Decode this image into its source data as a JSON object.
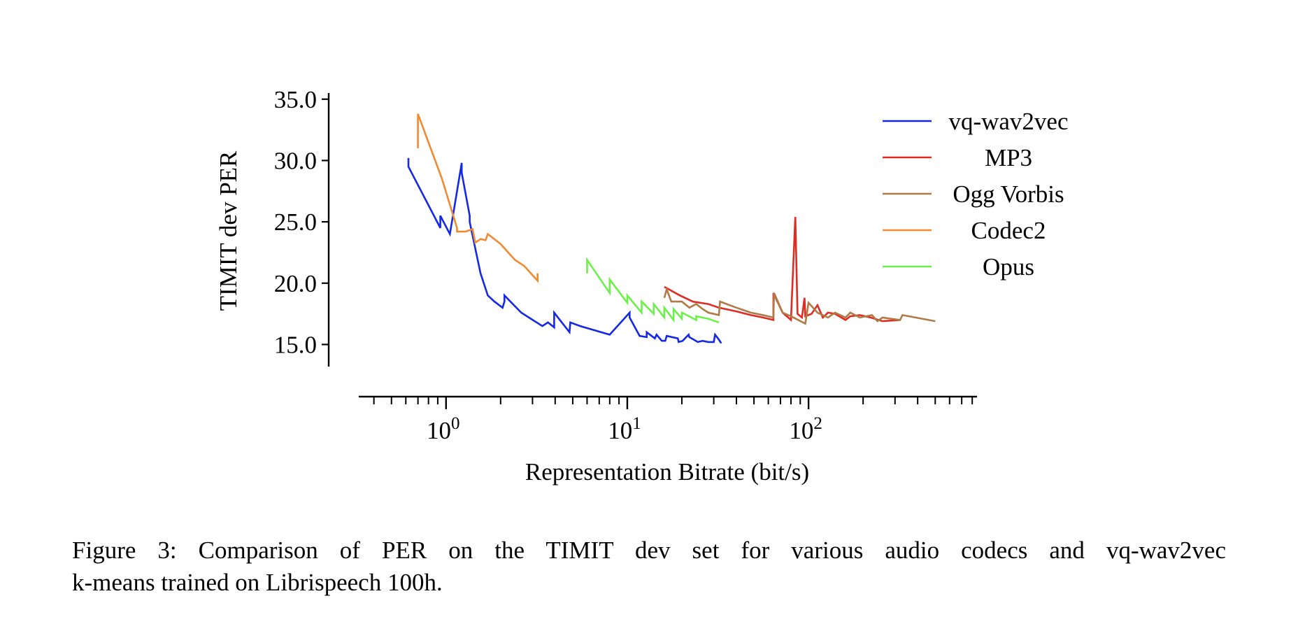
{
  "chart_data": {
    "type": "line",
    "xlabel": "Representation Bitrate (bit/s)",
    "ylabel": "TIMIT dev PER",
    "xscale": "log",
    "xlim": [
      0.33,
      850
    ],
    "ylim": [
      13.2,
      35.5
    ],
    "yticks": [
      15.0,
      20.0,
      25.0,
      30.0,
      35.0
    ],
    "ytick_labels": [
      "15.0",
      "20.0",
      "25.0",
      "30.0",
      "35.0"
    ],
    "xticks_major": [
      1,
      10,
      100
    ],
    "xtick_labels": [
      {
        "base": "10",
        "exp": "0"
      },
      {
        "base": "10",
        "exp": "1"
      },
      {
        "base": "10",
        "exp": "2"
      }
    ],
    "grid": false,
    "legend": "top-right",
    "series": [
      {
        "name": "vq-wav2vec",
        "color": "#1428e6",
        "x": [
          0.62,
          0.62,
          0.93,
          0.93,
          1.05,
          1.22,
          1.22,
          1.35,
          1.35,
          1.55,
          1.7,
          1.85,
          2.05,
          2.1,
          2.1,
          2.6,
          3.4,
          3.65,
          3.95,
          3.95,
          4.8,
          4.85,
          5.5,
          5.8,
          8.0,
          10.3,
          10.3,
          11.7,
          12.8,
          12.8,
          14.2,
          14.5,
          15.5,
          16.2,
          16.5,
          19.0,
          19.2,
          20.2,
          21.8,
          22.0,
          24.5,
          26.0,
          28.0,
          30.0,
          30.5,
          32.0,
          33.0
        ],
        "y": [
          30.2,
          29.5,
          24.5,
          25.5,
          24.0,
          29.8,
          29.0,
          25.5,
          25.0,
          20.8,
          19.0,
          18.5,
          18.0,
          18.5,
          19.0,
          17.6,
          16.5,
          16.8,
          16.4,
          17.6,
          16.0,
          16.8,
          16.5,
          16.4,
          15.8,
          17.6,
          17.2,
          15.7,
          15.6,
          16.0,
          15.5,
          15.8,
          15.3,
          15.3,
          15.7,
          15.5,
          15.2,
          15.3,
          15.8,
          15.6,
          15.2,
          15.3,
          15.2,
          15.2,
          15.8,
          15.4,
          15.1
        ]
      },
      {
        "name": "MP3",
        "color": "#e02b22",
        "x": [
          16.0,
          19.5,
          23.0,
          28.0,
          32.0,
          40.0,
          48.0,
          56.0,
          64.0,
          64.0,
          72.0,
          80.0,
          84.5,
          87.0,
          92.0,
          95.0,
          96.0,
          104.0,
          112.0,
          120.0,
          128.0,
          140.0,
          160.0,
          170.0,
          192.0,
          220.0,
          256.0,
          320.0
        ],
        "y": [
          19.7,
          19.0,
          18.5,
          18.3,
          18.0,
          17.7,
          17.4,
          17.2,
          17.0,
          19.2,
          17.6,
          17.0,
          25.4,
          17.5,
          17.2,
          18.8,
          17.3,
          17.5,
          18.2,
          17.2,
          17.6,
          17.5,
          17.0,
          17.3,
          17.4,
          17.2,
          16.9,
          17.0
        ]
      },
      {
        "name": "Ogg Vorbis",
        "color": "#b07a47",
        "x": [
          16.0,
          16.5,
          17.5,
          20.0,
          22.0,
          24.0,
          26.0,
          28.0,
          32.0,
          32.5,
          40.0,
          48.0,
          56.0,
          64.0,
          64.5,
          72.0,
          80.0,
          96.0,
          100.0,
          112.0,
          128.0,
          140.0,
          160.0,
          170.0,
          192.0,
          224.0,
          240.0,
          256.0,
          320.0,
          330.0,
          500.0
        ],
        "y": [
          18.8,
          19.5,
          18.5,
          18.5,
          18.0,
          18.3,
          17.9,
          17.6,
          17.4,
          18.5,
          18.0,
          17.6,
          17.4,
          17.2,
          19.2,
          17.6,
          17.3,
          16.7,
          18.4,
          17.6,
          17.2,
          17.6,
          17.2,
          17.6,
          17.2,
          17.4,
          16.9,
          17.2,
          17.0,
          17.4,
          16.9
        ]
      },
      {
        "name": "Codec2",
        "color": "#f08a33",
        "x": [
          0.7,
          0.7,
          0.95,
          1.15,
          1.15,
          1.28,
          1.4,
          1.45,
          1.55,
          1.65,
          1.7,
          2.0,
          2.3,
          2.4,
          2.7,
          3.2,
          3.2
        ],
        "y": [
          31.0,
          33.8,
          28.5,
          24.5,
          24.2,
          24.2,
          24.4,
          23.3,
          23.6,
          23.5,
          24.0,
          23.2,
          22.2,
          21.9,
          21.4,
          20.2,
          20.8
        ]
      },
      {
        "name": "Opus",
        "color": "#6cf04a",
        "x": [
          6.0,
          6.0,
          8.0,
          8.0,
          10.0,
          10.0,
          12.0,
          12.0,
          14.0,
          14.0,
          16.0,
          16.0,
          18.0,
          18.0,
          20.0,
          20.0,
          24.0,
          24.0,
          28.0,
          32.0
        ],
        "y": [
          20.8,
          21.9,
          19.2,
          20.3,
          18.4,
          19.0,
          17.6,
          18.5,
          17.5,
          18.3,
          17.2,
          18.0,
          17.0,
          17.9,
          17.1,
          17.6,
          17.0,
          17.3,
          17.1,
          16.8
        ]
      }
    ]
  },
  "caption": {
    "line1": "Figure 3:  Comparison of PER on the TIMIT dev set for various audio codecs and vq-wav2vec",
    "line2": "k-means trained on Librispeech 100h."
  }
}
